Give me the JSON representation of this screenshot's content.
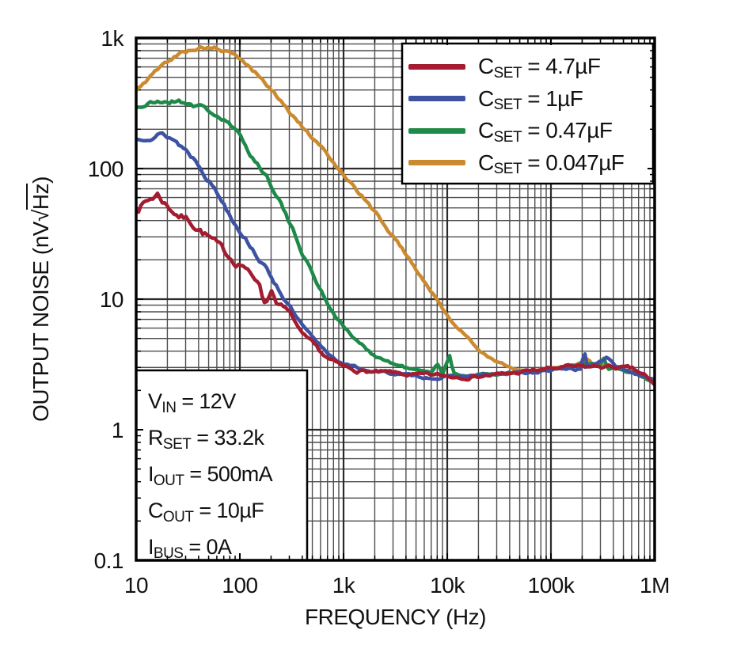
{
  "figure": {
    "background": "#ffffff",
    "x_axis_label": "FREQUENCY (Hz)",
    "y_axis_label": {
      "prefix": "OUTPUT NOISE (nV",
      "radical": "√",
      "overline_unit": "Hz",
      "suffix": ")"
    }
  },
  "chart_data": {
    "type": "line",
    "x_scale": "log",
    "y_scale": "log",
    "xlabel": "FREQUENCY (Hz)",
    "ylabel": "OUTPUT NOISE (nV/√Hz)",
    "xlim": [
      10,
      1000000
    ],
    "ylim": [
      0.1,
      1000
    ],
    "grid": {
      "major": true,
      "minor": true,
      "color_major": "#2b2b2b",
      "color_minor": "#4d4d4d"
    },
    "legend_position": "top-right",
    "x_ticks": [
      {
        "value": 10,
        "label": "10"
      },
      {
        "value": 100,
        "label": "100"
      },
      {
        "value": 1000,
        "label": "1k"
      },
      {
        "value": 10000,
        "label": "10k"
      },
      {
        "value": 100000,
        "label": "100k"
      },
      {
        "value": 1000000,
        "label": "1M"
      }
    ],
    "y_ticks": [
      {
        "value": 1000,
        "label": "1k"
      },
      {
        "value": 100,
        "label": "100"
      },
      {
        "value": 10,
        "label": "10"
      },
      {
        "value": 1,
        "label": "1"
      },
      {
        "value": 0.1,
        "label": "0.1"
      }
    ],
    "series": [
      {
        "name": "CSET = 4.7µF",
        "label": {
          "sym": "C",
          "sub": "SET",
          "rest": " = 4.7µF"
        },
        "color": "#a31c30",
        "jitter": 0.12,
        "points": [
          [
            10,
            50
          ],
          [
            13,
            57
          ],
          [
            16,
            64
          ],
          [
            20,
            52
          ],
          [
            26,
            44
          ],
          [
            33,
            40
          ],
          [
            42,
            34
          ],
          [
            55,
            28
          ],
          [
            70,
            23
          ],
          [
            90,
            19.5
          ],
          [
            110,
            18.5
          ],
          [
            135,
            14
          ],
          [
            155,
            13.5
          ],
          [
            175,
            9
          ],
          [
            200,
            12
          ],
          [
            230,
            9.5
          ],
          [
            270,
            8.5
          ],
          [
            330,
            7
          ],
          [
            400,
            5.2
          ],
          [
            480,
            4.6
          ],
          [
            580,
            4.0
          ],
          [
            700,
            3.5
          ],
          [
            850,
            3.2
          ],
          [
            1000,
            3.0
          ],
          [
            1400,
            2.85
          ],
          [
            2000,
            2.75
          ],
          [
            3000,
            2.7
          ],
          [
            5000,
            2.6
          ],
          [
            8000,
            2.6
          ],
          [
            12000,
            2.55
          ],
          [
            20000,
            2.6
          ],
          [
            35000,
            2.65
          ],
          [
            60000,
            2.8
          ],
          [
            90000,
            2.9
          ],
          [
            130000,
            3.0
          ],
          [
            200000,
            3.0
          ],
          [
            300000,
            3.05
          ],
          [
            450000,
            3.0
          ],
          [
            600000,
            2.9
          ],
          [
            800000,
            2.6
          ],
          [
            1000000,
            2.15
          ]
        ]
      },
      {
        "name": "CSET = 1µF",
        "label": {
          "sym": "C",
          "sub": "SET",
          "rest": " = 1µF"
        },
        "color": "#3e52a3",
        "jitter": 0.08,
        "points": [
          [
            10,
            165
          ],
          [
            13,
            182
          ],
          [
            17,
            185
          ],
          [
            22,
            172
          ],
          [
            30,
            140
          ],
          [
            40,
            110
          ],
          [
            50,
            84
          ],
          [
            65,
            60
          ],
          [
            85,
            42
          ],
          [
            110,
            31
          ],
          [
            140,
            23
          ],
          [
            180,
            17
          ],
          [
            230,
            12.5
          ],
          [
            300,
            8.8
          ],
          [
            400,
            6.2
          ],
          [
            550,
            4.6
          ],
          [
            750,
            3.7
          ],
          [
            1000,
            3.2
          ],
          [
            1400,
            2.95
          ],
          [
            2000,
            2.8
          ],
          [
            3000,
            2.7
          ],
          [
            5000,
            2.55
          ],
          [
            8000,
            2.5
          ],
          [
            12000,
            2.55
          ],
          [
            20000,
            2.6
          ],
          [
            40000,
            2.7
          ],
          [
            70000,
            2.75
          ],
          [
            100000,
            2.85
          ],
          [
            150000,
            2.95
          ],
          [
            195000,
            2.9
          ],
          [
            210000,
            4.05
          ],
          [
            225000,
            3.0
          ],
          [
            280000,
            3.3
          ],
          [
            350000,
            3.6
          ],
          [
            420000,
            3.0
          ],
          [
            500000,
            2.9
          ],
          [
            650000,
            2.7
          ],
          [
            800000,
            2.6
          ],
          [
            1000000,
            2.45
          ]
        ]
      },
      {
        "name": "CSET = 0.47µF",
        "label": {
          "sym": "C",
          "sub": "SET",
          "rest": " = 0.47µF"
        },
        "color": "#1e8a4a",
        "jitter": 0.075,
        "points": [
          [
            10,
            295
          ],
          [
            13,
            310
          ],
          [
            18,
            325
          ],
          [
            25,
            330
          ],
          [
            33,
            318
          ],
          [
            45,
            290
          ],
          [
            60,
            255
          ],
          [
            80,
            215
          ],
          [
            105,
            165
          ],
          [
            140,
            115
          ],
          [
            180,
            88
          ],
          [
            240,
            60
          ],
          [
            300,
            38
          ],
          [
            400,
            23
          ],
          [
            550,
            13.5
          ],
          [
            750,
            8.5
          ],
          [
            1000,
            6.2
          ],
          [
            1400,
            4.6
          ],
          [
            2000,
            3.7
          ],
          [
            3000,
            3.2
          ],
          [
            4500,
            2.9
          ],
          [
            7000,
            2.7
          ],
          [
            8000,
            3.3
          ],
          [
            9000,
            2.7
          ],
          [
            10500,
            3.7
          ],
          [
            11500,
            2.7
          ],
          [
            15000,
            2.6
          ],
          [
            25000,
            2.65
          ],
          [
            40000,
            2.7
          ],
          [
            60000,
            2.75
          ],
          [
            90000,
            2.85
          ],
          [
            130000,
            2.95
          ],
          [
            180000,
            3.1
          ],
          [
            250000,
            3.2
          ],
          [
            290000,
            3.0
          ],
          [
            320000,
            3.6
          ],
          [
            355000,
            2.9
          ],
          [
            450000,
            2.9
          ],
          [
            600000,
            2.7
          ],
          [
            800000,
            2.5
          ],
          [
            1000000,
            2.3
          ]
        ]
      },
      {
        "name": "CSET = 0.047µF",
        "label": {
          "sym": "C",
          "sub": "SET",
          "rest": " = 0.047µF"
        },
        "color": "#cc8a2f",
        "jitter": 0.055,
        "points": [
          [
            10,
            390
          ],
          [
            14,
            520
          ],
          [
            20,
            660
          ],
          [
            28,
            780
          ],
          [
            40,
            850
          ],
          [
            55,
            845
          ],
          [
            75,
            780
          ],
          [
            100,
            690
          ],
          [
            150,
            520
          ],
          [
            220,
            370
          ],
          [
            350,
            240
          ],
          [
            500,
            168
          ],
          [
            700,
            126
          ],
          [
            1000,
            92
          ],
          [
            1500,
            62
          ],
          [
            2200,
            42
          ],
          [
            3500,
            26
          ],
          [
            5000,
            17
          ],
          [
            7000,
            11.5
          ],
          [
            10000,
            7.5
          ],
          [
            15000,
            5.2
          ],
          [
            22000,
            3.9
          ],
          [
            30000,
            3.3
          ],
          [
            45000,
            2.9
          ],
          [
            70000,
            2.8
          ],
          [
            100000,
            3.0
          ],
          [
            160000,
            3.1
          ],
          [
            200000,
            3.3
          ],
          [
            230000,
            3.5
          ],
          [
            260000,
            3.1
          ],
          [
            320000,
            3.2
          ],
          [
            400000,
            3.1
          ],
          [
            500000,
            2.9
          ],
          [
            700000,
            2.7
          ],
          [
            1000000,
            2.3
          ]
        ]
      }
    ],
    "conditions": {
      "lines": [
        {
          "sym": "V",
          "sub": "IN",
          "rest": " = 12V"
        },
        {
          "sym": "R",
          "sub": "SET",
          "rest": " = 33.2k"
        },
        {
          "sym": "I",
          "sub": "OUT",
          "rest": " = 500mA"
        },
        {
          "sym": "C",
          "sub": "OUT",
          "rest": " = 10µF"
        },
        {
          "sym": "I",
          "sub": "BUS",
          "rest": " = 0A"
        }
      ]
    }
  }
}
